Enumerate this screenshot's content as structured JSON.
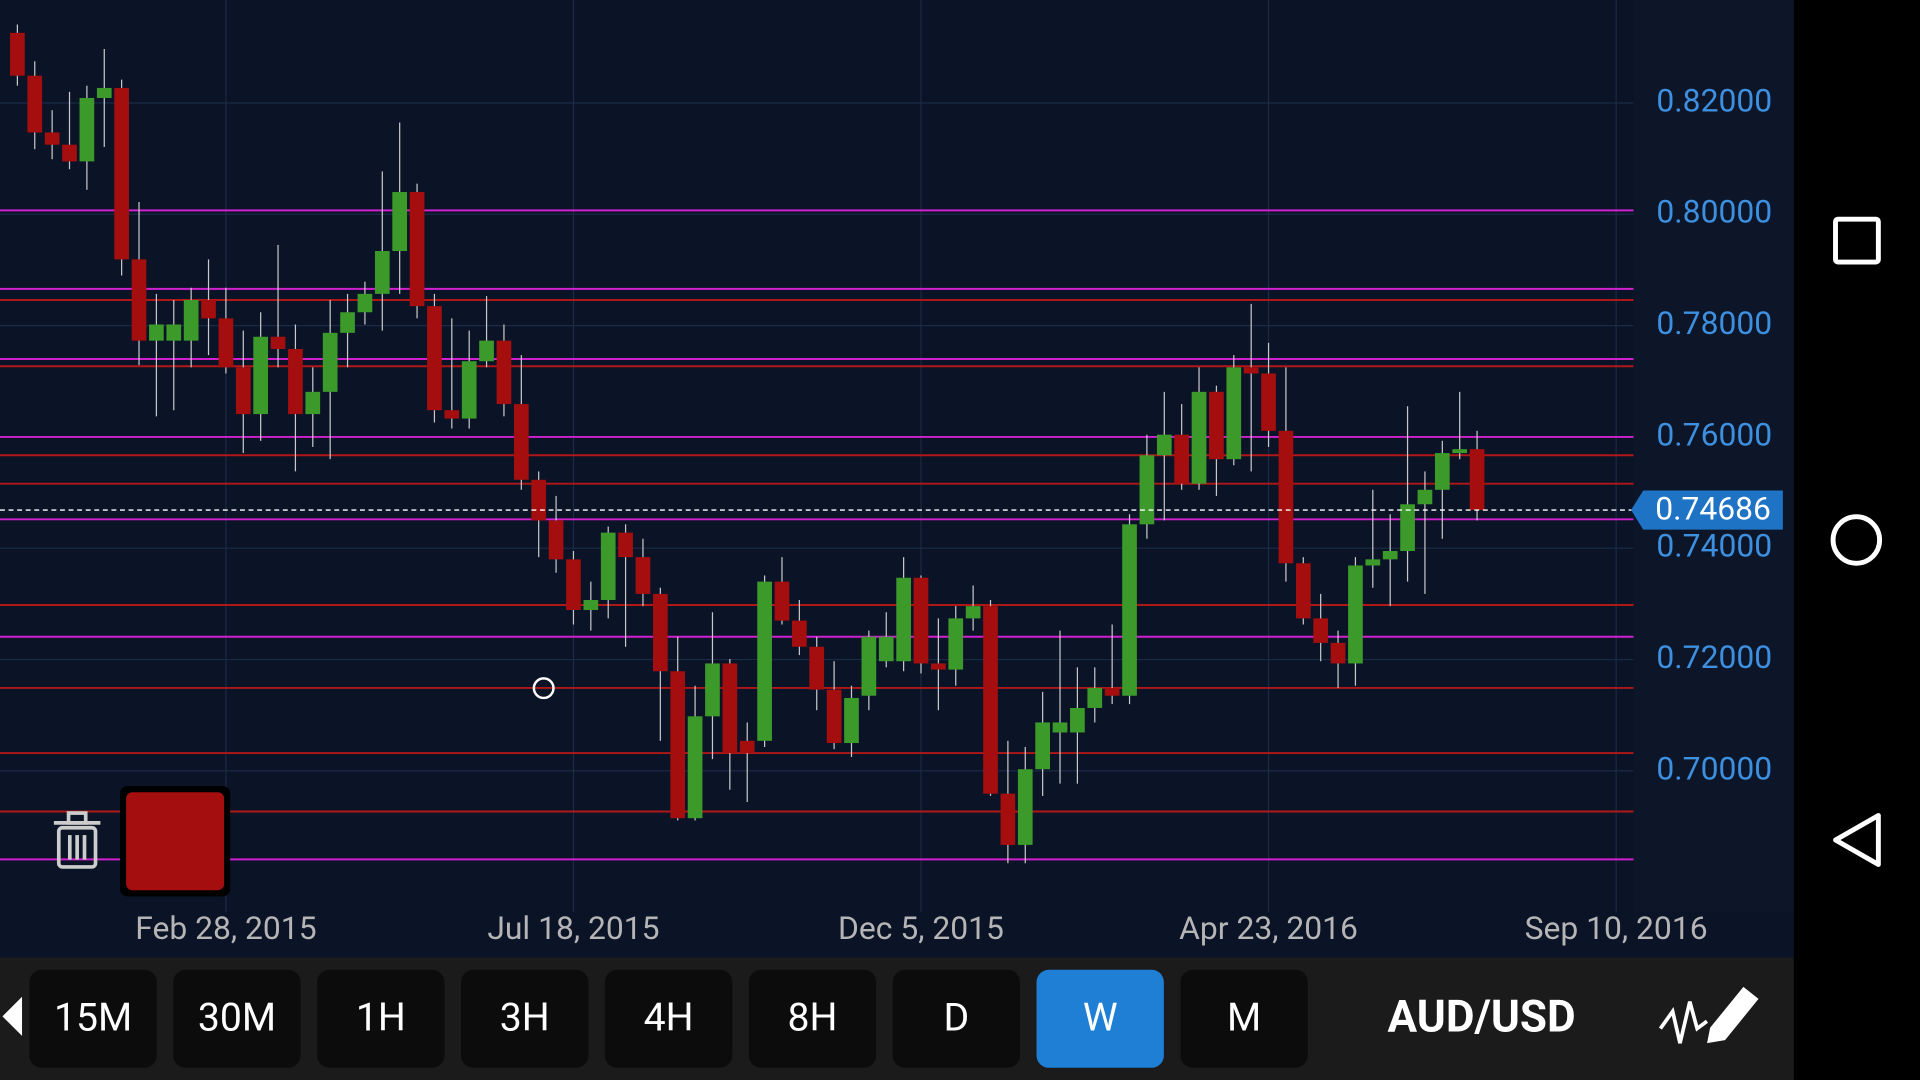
{
  "chart_data": {
    "type": "candlestick",
    "open": [
      0.8326,
      0.8249,
      0.8147,
      0.8125,
      0.8095,
      0.8209,
      0.8227,
      0.7919,
      0.7773,
      0.7773,
      0.7773,
      0.7846,
      0.7813,
      0.7725,
      0.7641,
      0.778,
      0.7758,
      0.7641,
      0.7681,
      0.7787,
      0.7824,
      0.7857,
      0.7934,
      0.804,
      0.7835,
      0.7648,
      0.7633,
      0.7736,
      0.7773,
      0.7659,
      0.7523,
      0.745,
      0.738,
      0.7289,
      0.7307,
      0.7428,
      0.7384,
      0.7318,
      0.7179,
      0.6915,
      0.7098,
      0.7193,
      0.7054,
      0.7054,
      0.734,
      0.727,
      0.7223,
      0.7146,
      0.705,
      0.7135,
      0.7197,
      0.7197,
      0.7347,
      0.7193,
      0.7182,
      0.7274,
      0.7296,
      0.6959,
      0.6867,
      0.7003,
      0.7069,
      0.7069,
      0.7113,
      0.7149,
      0.7135,
      0.7443,
      0.7567,
      0.7604,
      0.7516,
      0.7681,
      0.756,
      0.7725,
      0.7714,
      0.7611,
      0.7373,
      0.7274,
      0.723,
      0.7193,
      0.7369,
      0.738,
      0.7395,
      0.7479,
      0.7505,
      0.7571,
      0.7578
    ],
    "high": [
      0.8341,
      0.8275,
      0.8187,
      0.822,
      0.8231,
      0.8297,
      0.8242,
      0.8022,
      0.7857,
      0.7846,
      0.7868,
      0.7919,
      0.7868,
      0.7791,
      0.7824,
      0.7945,
      0.7802,
      0.7725,
      0.7846,
      0.7857,
      0.7879,
      0.8077,
      0.8165,
      0.8055,
      0.7857,
      0.7813,
      0.7791,
      0.7853,
      0.7802,
      0.7747,
      0.7538,
      0.7494,
      0.7395,
      0.734,
      0.7439,
      0.7443,
      0.7417,
      0.7329,
      0.7241,
      0.7153,
      0.7285,
      0.7201,
      0.7087,
      0.7351,
      0.7384,
      0.7307,
      0.7241,
      0.7197,
      0.7153,
      0.7252,
      0.7285,
      0.7384,
      0.7351,
      0.7274,
      0.7296,
      0.7333,
      0.7307,
      0.7054,
      0.7043,
      0.7142,
      0.7252,
      0.7186,
      0.7186,
      0.7263,
      0.7461,
      0.7604,
      0.7681,
      0.7659,
      0.7725,
      0.7692,
      0.7747,
      0.7839,
      0.7769,
      0.7725,
      0.7384,
      0.7318,
      0.7252,
      0.7384,
      0.7505,
      0.7461,
      0.7655,
      0.7538,
      0.7593,
      0.7681,
      0.7611
    ],
    "low": [
      0.8231,
      0.8117,
      0.8099,
      0.8081,
      0.8044,
      0.8121,
      0.789,
      0.7729,
      0.7637,
      0.7648,
      0.7725,
      0.7747,
      0.7714,
      0.7571,
      0.7593,
      0.7725,
      0.7538,
      0.7582,
      0.756,
      0.7725,
      0.7802,
      0.7791,
      0.7857,
      0.7813,
      0.7626,
      0.7615,
      0.7615,
      0.7725,
      0.7637,
      0.7505,
      0.7384,
      0.7356,
      0.7263,
      0.7252,
      0.7274,
      0.7223,
      0.7296,
      0.7054,
      0.6911,
      0.6911,
      0.7021,
      0.6966,
      0.6944,
      0.7043,
      0.7263,
      0.7208,
      0.7109,
      0.7039,
      0.7025,
      0.7109,
      0.7186,
      0.7179,
      0.7175,
      0.7109,
      0.7153,
      0.7252,
      0.6955,
      0.6834,
      0.6834,
      0.6955,
      0.6977,
      0.6977,
      0.7087,
      0.712,
      0.712,
      0.7417,
      0.745,
      0.7505,
      0.7505,
      0.7494,
      0.7549,
      0.7538,
      0.7582,
      0.734,
      0.7263,
      0.7197,
      0.7149,
      0.7153,
      0.7329,
      0.7296,
      0.734,
      0.7318,
      0.7417,
      0.756,
      0.745
    ],
    "close": [
      0.8249,
      0.8147,
      0.8125,
      0.8095,
      0.8209,
      0.8227,
      0.7919,
      0.7773,
      0.7802,
      0.7802,
      0.7846,
      0.7813,
      0.7725,
      0.7641,
      0.778,
      0.7758,
      0.7641,
      0.7681,
      0.7787,
      0.7824,
      0.7857,
      0.7934,
      0.804,
      0.7835,
      0.7648,
      0.7633,
      0.7736,
      0.7773,
      0.7659,
      0.7523,
      0.745,
      0.738,
      0.7289,
      0.7307,
      0.7428,
      0.7384,
      0.7318,
      0.7179,
      0.6915,
      0.7098,
      0.7193,
      0.7032,
      0.7032,
      0.734,
      0.727,
      0.7223,
      0.7146,
      0.705,
      0.7131,
      0.7241,
      0.7241,
      0.7347,
      0.7193,
      0.7182,
      0.7274,
      0.7296,
      0.6959,
      0.6867,
      0.7003,
      0.7087,
      0.7087,
      0.7113,
      0.7149,
      0.7135,
      0.7443,
      0.7567,
      0.7604,
      0.7516,
      0.7681,
      0.756,
      0.7725,
      0.7714,
      0.7611,
      0.7373,
      0.7274,
      0.723,
      0.7193,
      0.7369,
      0.738,
      0.7395,
      0.7479,
      0.7505,
      0.7571,
      0.7578,
      0.74686
    ],
    "up_color": "#3c9a2b",
    "down_color": "#a50e0e",
    "xlim": [
      -1,
      93
    ],
    "xticks": [
      {
        "value": 12,
        "label": "Feb 28, 2015"
      },
      {
        "value": 32,
        "label": "Jul 18, 2015"
      },
      {
        "value": 52,
        "label": "Dec 5, 2015"
      },
      {
        "value": 72,
        "label": "Apr 23, 2016"
      },
      {
        "value": 92,
        "label": "Sep 10, 2016"
      }
    ],
    "ylim": [
      0.6746,
      0.8385
    ],
    "yticks": [
      {
        "value": 0.7,
        "label": "0.70000"
      },
      {
        "value": 0.72,
        "label": "0.72000"
      },
      {
        "value": 0.74,
        "label": "0.74000"
      },
      {
        "value": 0.76,
        "label": "0.76000"
      },
      {
        "value": 0.78,
        "label": "0.78000"
      },
      {
        "value": 0.8,
        "label": "0.80000"
      },
      {
        "value": 0.82,
        "label": "0.82000"
      }
    ],
    "grid": true,
    "hlines": [
      {
        "value": 0.8007,
        "color": "#d020d0"
      },
      {
        "value": 0.7866,
        "color": "#d020d0"
      },
      {
        "value": 0.774,
        "color": "#d020d0"
      },
      {
        "value": 0.76,
        "color": "#d020d0"
      },
      {
        "value": 0.7452,
        "color": "#d020d0"
      },
      {
        "value": 0.7241,
        "color": "#d020d0"
      },
      {
        "value": 0.6841,
        "color": "#d020d0"
      },
      {
        "value": 0.7846,
        "color": "#b01818"
      },
      {
        "value": 0.7727,
        "color": "#b01818"
      },
      {
        "value": 0.7567,
        "color": "#b01818"
      },
      {
        "value": 0.7516,
        "color": "#b01818"
      },
      {
        "value": 0.7298,
        "color": "#b01818"
      },
      {
        "value": 0.7149,
        "color": "#b01818"
      },
      {
        "value": 0.7032,
        "color": "#b01818"
      },
      {
        "value": 0.6927,
        "color": "#b01818"
      }
    ]
  },
  "toolbar": {
    "timeframes": [
      "15M",
      "30M",
      "1H",
      "3H",
      "4H",
      "8H",
      "D",
      "W",
      "M"
    ],
    "selected_index": 7,
    "symbol": "AUD/USD"
  }
}
